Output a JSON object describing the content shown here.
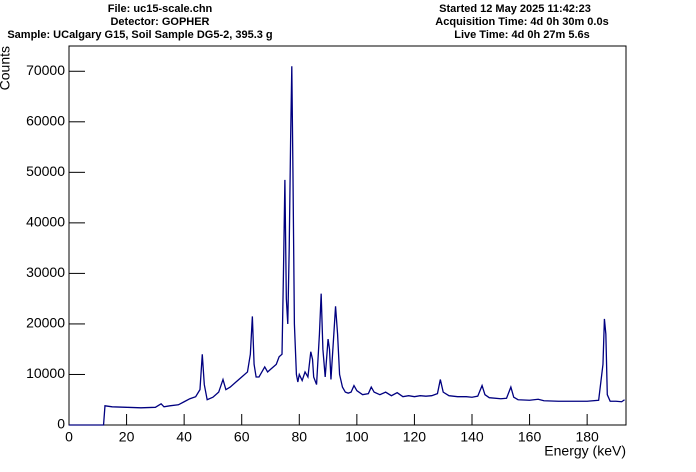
{
  "chart_data": {
    "type": "line",
    "header_left": [
      "File: uc15-scale.chn",
      "Detector: GOPHER",
      "Sample: UCalgary G15, Soil Sample DG5-2, 395.3 g"
    ],
    "header_right": [
      "Started 12 May 2025 11:42:23",
      "Acquisition Time: 4d 0h 30m 0.0s",
      "Live Time: 4d 0h 27m 5.6s"
    ],
    "xlabel": "Energy (keV)",
    "ylabel": "Counts",
    "color": "#000080",
    "x": [
      0,
      12,
      12.5,
      15,
      20,
      25,
      30,
      32,
      33,
      35,
      38,
      40,
      42,
      44,
      45.5,
      46.3,
      47,
      48,
      50,
      52,
      53.5,
      54.5,
      56,
      58,
      60,
      62,
      63,
      63.7,
      64.3,
      65,
      66,
      67,
      68,
      69,
      70,
      72,
      73,
      74,
      74.5,
      75,
      75.5,
      76,
      76.5,
      77,
      77.4,
      77.8,
      78.3,
      79,
      79.5,
      80,
      81,
      82,
      83,
      84,
      84.6,
      85,
      86,
      87,
      87.6,
      88.2,
      89,
      90,
      90.5,
      91,
      92,
      92.6,
      93.3,
      94,
      95,
      96,
      97,
      98,
      99,
      100,
      102,
      104,
      105,
      106,
      108,
      110,
      112,
      114,
      116,
      118,
      120,
      122,
      124,
      126,
      128,
      129,
      130,
      132,
      135,
      138,
      140,
      142,
      143.5,
      144.5,
      146,
      150,
      152,
      153.5,
      154.5,
      156,
      160,
      163,
      165,
      170,
      175,
      180,
      184,
      185.5,
      186,
      186.5,
      187,
      188,
      190,
      192,
      193
    ],
    "values": [
      0,
      0,
      3800,
      3600,
      3500,
      3400,
      3500,
      4200,
      3600,
      3800,
      4000,
      4600,
      5200,
      5600,
      7000,
      14000,
      8000,
      5000,
      5500,
      6500,
      9000,
      7000,
      7500,
      8500,
      9500,
      10500,
      14000,
      21500,
      12000,
      9500,
      9500,
      10500,
      11500,
      10500,
      11000,
      12000,
      13500,
      14000,
      30000,
      48500,
      25000,
      20000,
      35000,
      57000,
      71000,
      50000,
      20000,
      10000,
      8500,
      10000,
      8800,
      10500,
      9500,
      14500,
      13000,
      9500,
      8000,
      18000,
      26000,
      15000,
      9500,
      17000,
      15000,
      9000,
      18000,
      23500,
      18000,
      10000,
      7500,
      6500,
      6300,
      6500,
      7800,
      6800,
      6000,
      6200,
      7500,
      6500,
      6000,
      6500,
      5800,
      6400,
      5600,
      5800,
      5600,
      5800,
      5700,
      5800,
      6200,
      9000,
      6500,
      5800,
      5600,
      5600,
      5500,
      5700,
      7800,
      6000,
      5400,
      5200,
      5300,
      7500,
      5500,
      5000,
      4900,
      5100,
      4800,
      4700,
      4700,
      4700,
      4900,
      12000,
      21000,
      18000,
      6000,
      4700,
      4700,
      4600,
      5000
    ],
    "xlim": [
      0,
      193.5
    ],
    "ylim": [
      0,
      75000
    ],
    "xticks": [
      0,
      20,
      40,
      60,
      80,
      100,
      120,
      140,
      160,
      180
    ],
    "yticks": [
      0,
      10000,
      20000,
      30000,
      40000,
      50000,
      60000,
      70000
    ]
  }
}
